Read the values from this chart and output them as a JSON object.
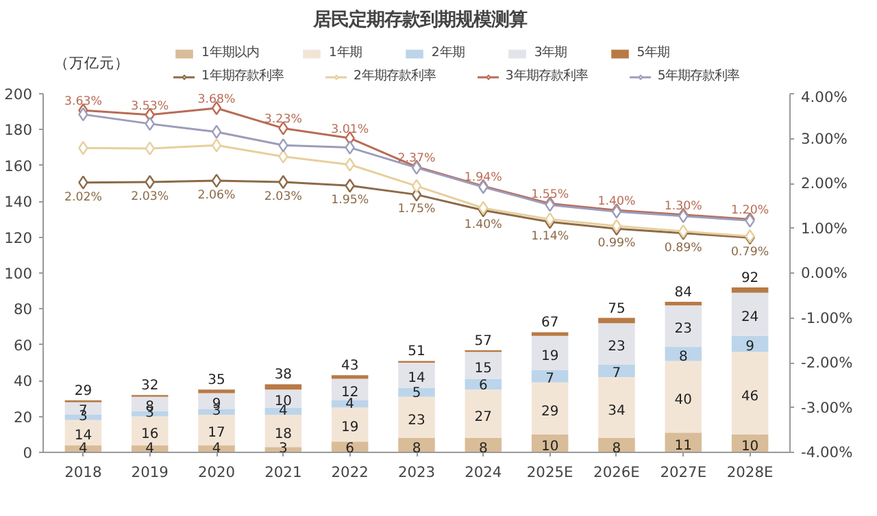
{
  "chart_data": {
    "type": "bar",
    "title": "居民定期存款到期规模测算",
    "ylabel": "（万亿元）",
    "categories": [
      "2018",
      "2019",
      "2020",
      "2021",
      "2022",
      "2023",
      "2024",
      "2025E",
      "2026E",
      "2027E",
      "2028E"
    ],
    "stacked": true,
    "legend": "top",
    "grid": false,
    "ylim": [
      0,
      200
    ],
    "yticks": [
      0,
      20,
      40,
      60,
      80,
      100,
      120,
      140,
      160,
      180,
      200
    ],
    "y2lim": [
      -4,
      4
    ],
    "y2ticks": [
      {
        "value": -4,
        "label": "-4.00%"
      },
      {
        "value": -3,
        "label": "-3.00%"
      },
      {
        "value": -2,
        "label": "-2.00%"
      },
      {
        "value": -1,
        "label": "-1.00%"
      },
      {
        "value": 0,
        "label": "0.00%"
      },
      {
        "value": 1,
        "label": "1.00%"
      },
      {
        "value": 2,
        "label": "2.00%"
      },
      {
        "value": 3,
        "label": "3.00%"
      },
      {
        "value": 4,
        "label": "4.00%"
      }
    ],
    "totals": [
      "29",
      "32",
      "35",
      "38",
      "43",
      "51",
      "57",
      "67",
      "75",
      "84",
      "92"
    ],
    "series": [
      {
        "name": "1年期以内",
        "color": "#d9bc98",
        "values": [
          4,
          4,
          4,
          3,
          6,
          8,
          8,
          10,
          8,
          11,
          10
        ],
        "value_labels": [
          "4",
          "4",
          "4",
          "3",
          "6",
          "8",
          "8",
          "10",
          "8",
          "11",
          "10"
        ]
      },
      {
        "name": "1年期",
        "color": "#f3e5d6",
        "values": [
          14,
          16,
          17,
          18,
          19,
          23,
          27,
          29,
          34,
          40,
          46
        ],
        "value_labels": [
          "14",
          "16",
          "17",
          "18",
          "19",
          "23",
          "27",
          "29",
          "34",
          "40",
          "46"
        ]
      },
      {
        "name": "2年期",
        "color": "#bcd5ea",
        "values": [
          3,
          3,
          3,
          4,
          4,
          5,
          6,
          7,
          7,
          8,
          9
        ],
        "value_labels": [
          "3",
          "3",
          "3",
          "4",
          "4",
          "5",
          "6",
          "7",
          "7",
          "8",
          "9"
        ]
      },
      {
        "name": "3年期",
        "color": "#e3e3ea",
        "values": [
          7,
          8,
          9,
          10,
          12,
          14,
          15,
          19,
          23,
          23,
          24
        ],
        "value_labels": [
          "7",
          "8",
          "9",
          "10",
          "12",
          "14",
          "15",
          "19",
          "23",
          "23",
          "24"
        ]
      },
      {
        "name": "5年期",
        "color": "#b87a45",
        "values": [
          1,
          1,
          2,
          3,
          2,
          1,
          1,
          2,
          3,
          2,
          3
        ]
      },
      {
        "name": "1年期存款利率",
        "type": "line",
        "axis": "y2",
        "marker": "diamond",
        "line_style": "solid",
        "color": "#8c6a48",
        "values": [
          2.02,
          2.03,
          2.06,
          2.03,
          1.95,
          1.75,
          1.4,
          1.14,
          0.99,
          0.89,
          0.79
        ],
        "value_labels": [
          "2.02%",
          "2.03%",
          "2.06%",
          "2.03%",
          "1.95%",
          "1.75%",
          "1.40%",
          "1.14%",
          "0.99%",
          "0.89%",
          "0.79%"
        ]
      },
      {
        "name": "2年期存款利率",
        "type": "line",
        "axis": "y2",
        "marker": "diamond",
        "line_style": "solid",
        "color": "#e7cf9c",
        "values": [
          2.79,
          2.78,
          2.85,
          2.6,
          2.42,
          1.94,
          1.45,
          1.2,
          1.05,
          0.93,
          0.82
        ]
      },
      {
        "name": "3年期存款利率",
        "type": "line",
        "axis": "y2",
        "marker": "diamond",
        "line_style": "solid",
        "color": "#b96b55",
        "values": [
          3.63,
          3.53,
          3.68,
          3.23,
          3.01,
          2.37,
          1.94,
          1.55,
          1.4,
          1.3,
          1.2
        ],
        "value_labels": [
          "3.63%",
          "3.53%",
          "3.68%",
          "3.23%",
          "3.01%",
          "2.37%",
          "1.94%",
          "1.55%",
          "1.40%",
          "1.30%",
          "1.20%"
        ]
      },
      {
        "name": "5年期存款利率",
        "type": "line",
        "axis": "y2",
        "marker": "diamond",
        "line_style": "solid",
        "color": "#9c9cbb",
        "values": [
          3.54,
          3.33,
          3.15,
          2.85,
          2.8,
          2.35,
          1.92,
          1.52,
          1.37,
          1.27,
          1.17
        ]
      }
    ]
  }
}
